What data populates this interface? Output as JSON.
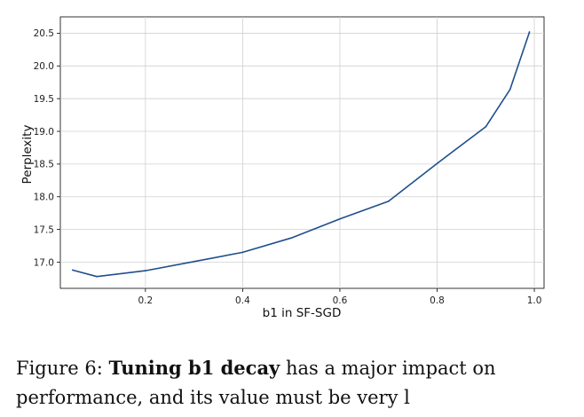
{
  "chart_data": {
    "type": "line",
    "title": "",
    "xlabel": "b1 in SF-SGD",
    "ylabel": "Perplexity",
    "xlim": [
      0.025,
      1.02
    ],
    "ylim": [
      16.6,
      20.75
    ],
    "xticks": [
      0.2,
      0.4,
      0.6,
      0.8,
      1.0
    ],
    "xtick_labels": [
      "0.2",
      "0.4",
      "0.6",
      "0.8",
      "1.0"
    ],
    "yticks": [
      17.0,
      17.5,
      18.0,
      18.5,
      19.0,
      19.5,
      20.0,
      20.5
    ],
    "ytick_labels": [
      "17.0",
      "17.5",
      "18.0",
      "18.5",
      "19.0",
      "19.5",
      "20.0",
      "20.5"
    ],
    "grid": true,
    "line_color": "#1f4e8c",
    "series": [
      {
        "x": [
          0.05,
          0.1,
          0.2,
          0.3,
          0.4,
          0.5,
          0.6,
          0.7,
          0.8,
          0.9,
          0.95,
          0.99
        ],
        "values": [
          16.88,
          16.78,
          16.87,
          17.01,
          17.15,
          17.37,
          17.66,
          17.93,
          18.51,
          19.07,
          19.64,
          20.52
        ]
      }
    ]
  },
  "caption": {
    "label": "Figure 6:",
    "bold": "Tuning b1 decay",
    "line1_rest": "has a major impact on",
    "line2": "performance, and its value must be very l"
  }
}
